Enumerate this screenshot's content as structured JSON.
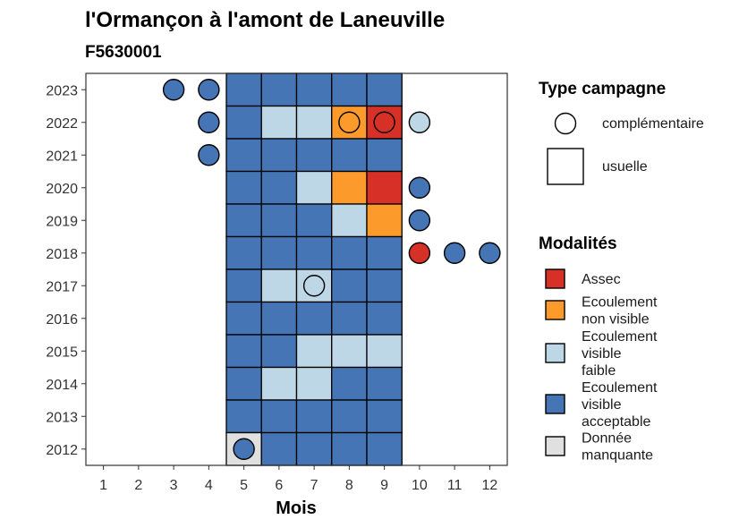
{
  "chart_data": {
    "type": "heatmap",
    "title": "l'Ormançon à l'amont de Laneuville",
    "subtitle": "F5630001",
    "xlabel": "Mois",
    "ylabel": "",
    "x_ticks": [
      "1",
      "2",
      "3",
      "4",
      "5",
      "6",
      "7",
      "8",
      "9",
      "10",
      "11",
      "12"
    ],
    "y_ticks": [
      "2012",
      "2013",
      "2014",
      "2015",
      "2016",
      "2017",
      "2018",
      "2019",
      "2020",
      "2021",
      "2022",
      "2023"
    ],
    "xlim": [
      0.5,
      12.5
    ],
    "ylim": [
      2011.5,
      2023.5
    ],
    "grid": false,
    "legend_placement": "right",
    "legend_type": {
      "title": "Type campagne",
      "items": [
        {
          "key": "complementaire",
          "label": "complémentaire",
          "shape": "circle"
        },
        {
          "key": "usuelle",
          "label": "usuelle",
          "shape": "square"
        }
      ]
    },
    "legend_modalites": {
      "title": "Modalités",
      "items": [
        {
          "key": "assec",
          "lines": [
            "Assec"
          ],
          "color": "#d73027"
        },
        {
          "key": "nonvisible",
          "lines": [
            "Ecoulement",
            "non visible"
          ],
          "color": "#fd9a2c"
        },
        {
          "key": "faible",
          "lines": [
            "Ecoulement",
            "visible",
            "faible"
          ],
          "color": "#bdd7e7"
        },
        {
          "key": "acceptable",
          "lines": [
            "Ecoulement",
            "visible",
            "acceptable"
          ],
          "color": "#4575b4"
        },
        {
          "key": "manquante",
          "lines": [
            "Donnée",
            "manquante"
          ],
          "color": "#e0e0e0"
        }
      ]
    },
    "usuelle": [
      {
        "year": 2023,
        "month": 5,
        "mod": "acceptable"
      },
      {
        "year": 2023,
        "month": 6,
        "mod": "acceptable"
      },
      {
        "year": 2023,
        "month": 7,
        "mod": "acceptable"
      },
      {
        "year": 2023,
        "month": 8,
        "mod": "acceptable"
      },
      {
        "year": 2023,
        "month": 9,
        "mod": "acceptable"
      },
      {
        "year": 2022,
        "month": 5,
        "mod": "acceptable"
      },
      {
        "year": 2022,
        "month": 6,
        "mod": "faible"
      },
      {
        "year": 2022,
        "month": 7,
        "mod": "faible"
      },
      {
        "year": 2022,
        "month": 8,
        "mod": "nonvisible"
      },
      {
        "year": 2022,
        "month": 9,
        "mod": "assec"
      },
      {
        "year": 2021,
        "month": 5,
        "mod": "acceptable"
      },
      {
        "year": 2021,
        "month": 6,
        "mod": "acceptable"
      },
      {
        "year": 2021,
        "month": 7,
        "mod": "acceptable"
      },
      {
        "year": 2021,
        "month": 8,
        "mod": "acceptable"
      },
      {
        "year": 2021,
        "month": 9,
        "mod": "acceptable"
      },
      {
        "year": 2020,
        "month": 5,
        "mod": "acceptable"
      },
      {
        "year": 2020,
        "month": 6,
        "mod": "acceptable"
      },
      {
        "year": 2020,
        "month": 7,
        "mod": "faible"
      },
      {
        "year": 2020,
        "month": 8,
        "mod": "nonvisible"
      },
      {
        "year": 2020,
        "month": 9,
        "mod": "assec"
      },
      {
        "year": 2019,
        "month": 5,
        "mod": "acceptable"
      },
      {
        "year": 2019,
        "month": 6,
        "mod": "acceptable"
      },
      {
        "year": 2019,
        "month": 7,
        "mod": "acceptable"
      },
      {
        "year": 2019,
        "month": 8,
        "mod": "faible"
      },
      {
        "year": 2019,
        "month": 9,
        "mod": "nonvisible"
      },
      {
        "year": 2018,
        "month": 5,
        "mod": "acceptable"
      },
      {
        "year": 2018,
        "month": 6,
        "mod": "acceptable"
      },
      {
        "year": 2018,
        "month": 7,
        "mod": "acceptable"
      },
      {
        "year": 2018,
        "month": 8,
        "mod": "acceptable"
      },
      {
        "year": 2018,
        "month": 9,
        "mod": "acceptable"
      },
      {
        "year": 2017,
        "month": 5,
        "mod": "acceptable"
      },
      {
        "year": 2017,
        "month": 6,
        "mod": "faible"
      },
      {
        "year": 2017,
        "month": 7,
        "mod": "faible"
      },
      {
        "year": 2017,
        "month": 8,
        "mod": "acceptable"
      },
      {
        "year": 2017,
        "month": 9,
        "mod": "acceptable"
      },
      {
        "year": 2016,
        "month": 5,
        "mod": "acceptable"
      },
      {
        "year": 2016,
        "month": 6,
        "mod": "acceptable"
      },
      {
        "year": 2016,
        "month": 7,
        "mod": "acceptable"
      },
      {
        "year": 2016,
        "month": 8,
        "mod": "acceptable"
      },
      {
        "year": 2016,
        "month": 9,
        "mod": "acceptable"
      },
      {
        "year": 2015,
        "month": 5,
        "mod": "acceptable"
      },
      {
        "year": 2015,
        "month": 6,
        "mod": "acceptable"
      },
      {
        "year": 2015,
        "month": 7,
        "mod": "faible"
      },
      {
        "year": 2015,
        "month": 8,
        "mod": "faible"
      },
      {
        "year": 2015,
        "month": 9,
        "mod": "faible"
      },
      {
        "year": 2014,
        "month": 5,
        "mod": "acceptable"
      },
      {
        "year": 2014,
        "month": 6,
        "mod": "faible"
      },
      {
        "year": 2014,
        "month": 7,
        "mod": "faible"
      },
      {
        "year": 2014,
        "month": 8,
        "mod": "acceptable"
      },
      {
        "year": 2014,
        "month": 9,
        "mod": "acceptable"
      },
      {
        "year": 2013,
        "month": 5,
        "mod": "acceptable"
      },
      {
        "year": 2013,
        "month": 6,
        "mod": "acceptable"
      },
      {
        "year": 2013,
        "month": 7,
        "mod": "acceptable"
      },
      {
        "year": 2013,
        "month": 8,
        "mod": "acceptable"
      },
      {
        "year": 2013,
        "month": 9,
        "mod": "acceptable"
      },
      {
        "year": 2012,
        "month": 5,
        "mod": "manquante"
      },
      {
        "year": 2012,
        "month": 6,
        "mod": "acceptable"
      },
      {
        "year": 2012,
        "month": 7,
        "mod": "acceptable"
      },
      {
        "year": 2012,
        "month": 8,
        "mod": "acceptable"
      },
      {
        "year": 2012,
        "month": 9,
        "mod": "acceptable"
      }
    ],
    "complementaire": [
      {
        "year": 2023,
        "month": 3,
        "mod": "acceptable"
      },
      {
        "year": 2023,
        "month": 4,
        "mod": "acceptable"
      },
      {
        "year": 2022,
        "month": 4,
        "mod": "acceptable"
      },
      {
        "year": 2022,
        "month": 8,
        "mod": "nonvisible"
      },
      {
        "year": 2022,
        "month": 9,
        "mod": "assec"
      },
      {
        "year": 2022,
        "month": 10,
        "mod": "faible"
      },
      {
        "year": 2021,
        "month": 4,
        "mod": "acceptable"
      },
      {
        "year": 2020,
        "month": 10,
        "mod": "acceptable"
      },
      {
        "year": 2019,
        "month": 10,
        "mod": "acceptable"
      },
      {
        "year": 2018,
        "month": 10,
        "mod": "assec"
      },
      {
        "year": 2018,
        "month": 11,
        "mod": "acceptable"
      },
      {
        "year": 2018,
        "month": 12,
        "mod": "acceptable"
      },
      {
        "year": 2017,
        "month": 7,
        "mod": "faible"
      },
      {
        "year": 2012,
        "month": 5,
        "mod": "acceptable"
      }
    ]
  }
}
